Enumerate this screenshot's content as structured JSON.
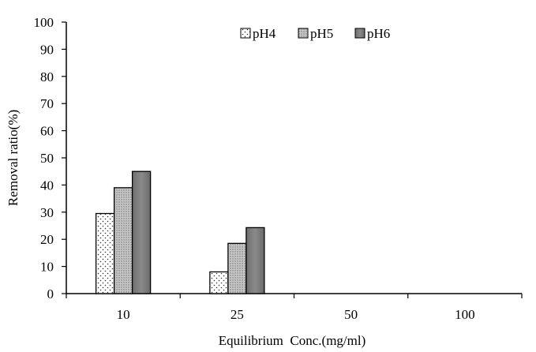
{
  "chart_data": {
    "type": "bar",
    "title": "",
    "xlabel": "Equilibrium  Conc.(mg/ml)",
    "ylabel": "Removal ratio(%)",
    "categories": [
      "10",
      "25",
      "50",
      "100"
    ],
    "ylim": [
      0,
      100
    ],
    "yticks": [
      0,
      10,
      20,
      30,
      40,
      50,
      60,
      70,
      80,
      90,
      100
    ],
    "grid": false,
    "legend_position": "top-center",
    "series": [
      {
        "name": "pH4",
        "values": [
          29.5,
          8.0,
          0,
          0
        ],
        "fill": "dotted",
        "color": "#ffffff"
      },
      {
        "name": "pH5",
        "values": [
          39.0,
          18.5,
          0,
          0
        ],
        "fill": "fine-dots",
        "color": "#b8b8b8"
      },
      {
        "name": "pH6",
        "values": [
          45.0,
          24.3,
          0,
          0
        ],
        "fill": "solid",
        "color": "#7a7a7a"
      }
    ]
  }
}
